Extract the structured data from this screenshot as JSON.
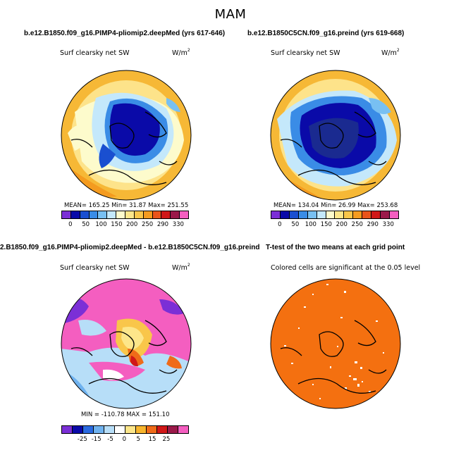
{
  "page": {
    "title": "MAM"
  },
  "colors": {
    "abs_palette": [
      "#7b2fd6",
      "#0a0aa8",
      "#1a4fd0",
      "#3a8ce6",
      "#78c0f2",
      "#c4e8fb",
      "#fdfbcc",
      "#fde68a",
      "#f9c64a",
      "#f49b1f",
      "#e9541b",
      "#d01818",
      "#9b1a4a",
      "#f45ec0"
    ],
    "diff_palette": [
      "#7b2fd6",
      "#0a0aa8",
      "#2a6ae0",
      "#6fb2ef",
      "#b7def8",
      "#ffffff",
      "#fde68a",
      "#f7b52e",
      "#ef6b19",
      "#d01818",
      "#9b1a4a",
      "#f45ec0"
    ],
    "ttest": "#f47010"
  },
  "panels": {
    "top_left": {
      "title": "b.e12.B1850.f09_g16.PIMP4-pliomip2.deepMed (yrs 617-646)",
      "variable": "Surf clearsky net SW",
      "units": "W/m",
      "units_exp": "2",
      "stats": "MEAN=  165.25    Min=   31.87    Max=  251.55"
    },
    "top_right": {
      "title": "b.e12.B1850C5CN.f09_g16.preind (yrs 619-668)",
      "variable": "Surf clearsky net SW",
      "units": "W/m",
      "units_exp": "2",
      "stats": "MEAN=  134.04    Min=   26.99    Max=  253.68"
    },
    "bottom_left": {
      "title": "2.B1850.f09_g16.PIMP4-pliomip2.deepMed - b.e12.B1850C5CN.f09_g16.preind",
      "variable": "Surf clearsky net SW",
      "units": "W/m",
      "units_exp": "2",
      "stats": "MIN = -110.78  MAX = 151.10"
    },
    "bottom_right": {
      "title": "T-test of the two means at each grid point",
      "note": "Colored cells are significant at the 0.05 level"
    }
  },
  "chart_data": [
    {
      "type": "heatmap",
      "projection": "north-polar-stereographic",
      "title": "b.e12.B1850.f09_g16.PIMP4-pliomip2.deepMed (yrs 617-646)",
      "variable": "Surf clearsky net SW",
      "units": "W/m^2",
      "mean": 165.25,
      "min": 31.87,
      "max": 251.55,
      "colorbar_ticks": [
        "0",
        "50",
        "100",
        "150",
        "200",
        "250",
        "290",
        "330"
      ]
    },
    {
      "type": "heatmap",
      "projection": "north-polar-stereographic",
      "title": "b.e12.B1850C5CN.f09_g16.preind (yrs 619-668)",
      "variable": "Surf clearsky net SW",
      "units": "W/m^2",
      "mean": 134.04,
      "min": 26.99,
      "max": 253.68,
      "colorbar_ticks": [
        "0",
        "50",
        "100",
        "150",
        "200",
        "250",
        "290",
        "330"
      ]
    },
    {
      "type": "heatmap",
      "projection": "north-polar-stereographic",
      "title": "2.B1850.f09_g16.PIMP4-pliomip2.deepMed - b.e12.B1850C5CN.f09_g16.preind",
      "variable": "Surf clearsky net SW",
      "units": "W/m^2",
      "min": -110.78,
      "max": 151.1,
      "colorbar_ticks": [
        "-25",
        "-15",
        "-5",
        "0",
        "5",
        "15",
        "25"
      ]
    },
    {
      "type": "heatmap",
      "projection": "north-polar-stereographic",
      "title": "T-test of the two means at each grid point",
      "note": "Colored cells are significant at the 0.05 level"
    }
  ]
}
